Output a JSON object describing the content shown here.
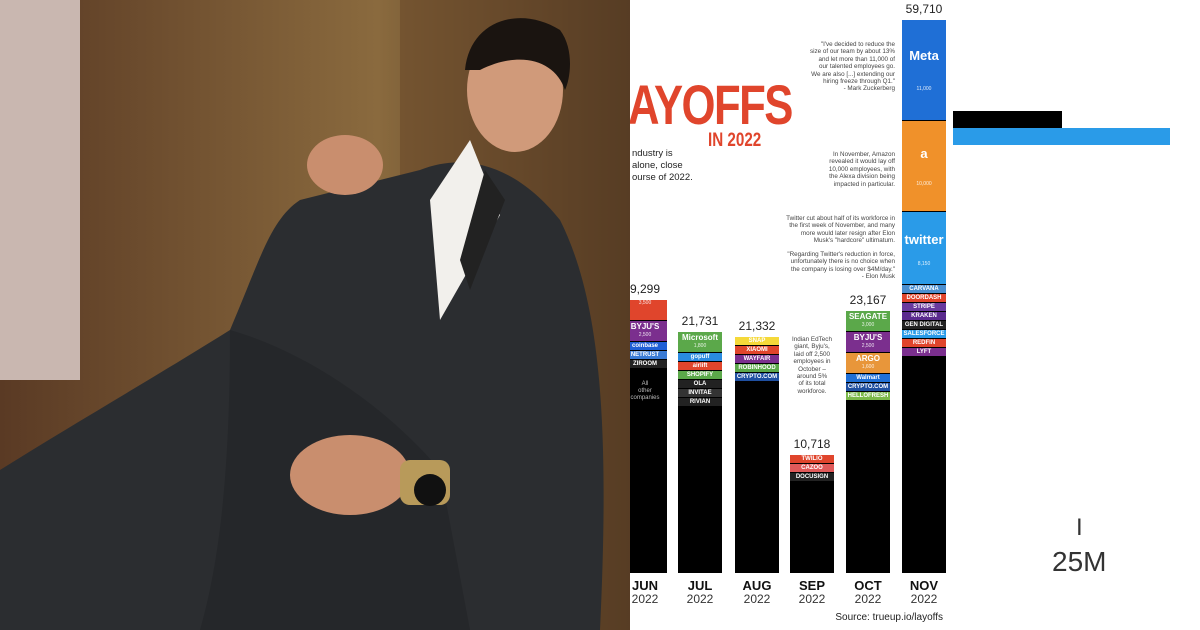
{
  "infographic": {
    "title": "AYOFFS",
    "title_sub": "IN 2022",
    "intro": [
      "ndustry is",
      "alone, close",
      "ourse of 2022."
    ],
    "columns": [
      {
        "month": "JUN",
        "year": "2022",
        "total": "9,299",
        "note": [
          "All",
          "other",
          "companies"
        ],
        "segments": [
          {
            "sub": "3,500",
            "color": "#e0452c"
          },
          {
            "name": "BYJU'S",
            "sub": "2,500",
            "color": "#7b2f8e"
          },
          {
            "name": "coinbase",
            "color": "#1f5fd6"
          },
          {
            "name": "NETRUST",
            "color": "#3a7bd5"
          },
          {
            "name": "ZIROOM",
            "color": "#222222"
          }
        ]
      },
      {
        "month": "JUL",
        "year": "2022",
        "total": "21,731",
        "segments": [
          {
            "name": "Microsoft",
            "sub": "1,800",
            "color": "#5ba84a"
          },
          {
            "name": "gopuff",
            "color": "#2a8be0"
          },
          {
            "name": "airlift",
            "color": "#e0452c"
          },
          {
            "name": "SHOPIFY",
            "color": "#5ba84a"
          },
          {
            "name": "OLA",
            "color": "#222222"
          },
          {
            "name": "INVITAE",
            "color": "#333333"
          },
          {
            "name": "RIVIAN",
            "color": "#222222"
          }
        ]
      },
      {
        "month": "AUG",
        "year": "2022",
        "total": "21,332",
        "segments": [
          {
            "name": "SNAP",
            "color": "#f5d93a"
          },
          {
            "name": "XIAOMI",
            "color": "#e0452c"
          },
          {
            "name": "WAYFAIR",
            "color": "#7b2f8e"
          },
          {
            "name": "ROBINHOOD",
            "color": "#5ba84a"
          },
          {
            "name": "CRYPTO.COM",
            "color": "#1f4fa0"
          }
        ]
      },
      {
        "month": "SEP",
        "year": "2022",
        "total": "10,718",
        "segments": [
          {
            "name": "TWILIO",
            "color": "#e0452c"
          },
          {
            "name": "CAZOO",
            "color": "#e05a5a"
          },
          {
            "name": "DOCUSIGN",
            "color": "#222222"
          }
        ]
      },
      {
        "month": "OCT",
        "year": "2022",
        "total": "23,167",
        "segments": [
          {
            "name": "SEAGATE",
            "sub": "3,000",
            "color": "#5ba84a"
          },
          {
            "name": "BYJU'S",
            "sub": "2,500",
            "color": "#7b2f8e"
          },
          {
            "name": "ARGO",
            "sub": "1,600",
            "color": "#e8963a"
          },
          {
            "name": "Walmart",
            "color": "#1f6fd6"
          },
          {
            "name": "CRYPTO.COM",
            "color": "#1f4fa0"
          },
          {
            "name": "HELLOFRESH",
            "color": "#7bb84a"
          }
        ]
      },
      {
        "month": "NOV",
        "year": "2022",
        "total": "59,710",
        "segments": [
          {
            "name": "Meta",
            "sub": "11,000",
            "color": "#1f6fd6"
          },
          {
            "name": "a",
            "sub": "10,000",
            "color": "#f0912a"
          },
          {
            "name": "twitter",
            "sub": "8,150",
            "color": "#2a9be8"
          },
          {
            "name": "CARVANA",
            "color": "#4a8fd0"
          },
          {
            "name": "DOORDASH",
            "color": "#e0452c"
          },
          {
            "name": "STRIPE",
            "color": "#6a3a9e"
          },
          {
            "name": "KRAKEN",
            "color": "#5a2a8e"
          },
          {
            "name": "GEN DIGITAL",
            "color": "#222222"
          },
          {
            "name": "SALESFORCE",
            "color": "#2a9be8"
          },
          {
            "name": "REDFIN",
            "color": "#e0452c"
          },
          {
            "name": "LYFT",
            "color": "#7b2f8e"
          }
        ]
      }
    ],
    "annotations": {
      "meta": [
        "\"I've decided to reduce the",
        "size of our team by about 13%",
        "and let more than 11,000 of",
        "our talented employees go.",
        "We are also [...] extending our",
        "hiring freeze through Q1.\"",
        "- Mark Zuckerberg"
      ],
      "amazon": [
        "In November, Amazon",
        "revealed it would lay off",
        "10,000 employees, with",
        "the Alexa division being",
        "impacted in particular."
      ],
      "twitter": [
        "Twitter cut about half of its workforce in",
        "the first week of November, and many",
        "more would later resign after Elon",
        "Musk's \"hardcore\" ultimatum."
      ],
      "elon": [
        "\"Regarding Twitter's reduction in force,",
        "unfortunately there is no choice when",
        "the company is losing over $4M/day.\"",
        "- Elon Musk"
      ],
      "byjus": [
        "Indian EdTech",
        "giant, Byju's,",
        "laid off 2,500",
        "employees in",
        "October –",
        "around 5%",
        "of its total",
        "workforce."
      ]
    },
    "source": "Source: trueup.io/layoffs"
  },
  "side": {
    "cursor": "I",
    "amount": "25M"
  }
}
